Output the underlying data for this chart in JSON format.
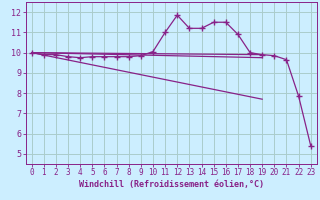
{
  "title": "",
  "xlabel": "Windchill (Refroidissement éolien,°C)",
  "background_color": "#cceeff",
  "grid_color": "#aacccc",
  "line_color": "#882288",
  "xlim_min": -0.5,
  "xlim_max": 23.5,
  "ylim_min": 4.5,
  "ylim_max": 12.5,
  "yticks": [
    5,
    6,
    7,
    8,
    9,
    10,
    11,
    12
  ],
  "xticks": [
    0,
    1,
    2,
    3,
    4,
    5,
    6,
    7,
    8,
    9,
    10,
    11,
    12,
    13,
    14,
    15,
    16,
    17,
    18,
    19,
    20,
    21,
    22,
    23
  ],
  "series_main": {
    "x": [
      0,
      1,
      2,
      3,
      4,
      5,
      6,
      7,
      8,
      9,
      10,
      11,
      12,
      13,
      14,
      15,
      16,
      17,
      18,
      19,
      20,
      21,
      22,
      23
    ],
    "y": [
      10.0,
      9.9,
      9.9,
      9.8,
      9.75,
      9.8,
      9.8,
      9.8,
      9.8,
      9.85,
      10.05,
      11.0,
      11.85,
      11.2,
      11.2,
      11.5,
      11.5,
      10.9,
      10.0,
      9.9,
      9.85,
      9.65,
      7.85,
      5.4
    ]
  },
  "series_flat1": {
    "x": [
      0,
      19
    ],
    "y": [
      10.0,
      9.9
    ]
  },
  "series_flat2": {
    "x": [
      0,
      19
    ],
    "y": [
      10.0,
      9.75
    ]
  },
  "series_diag": {
    "x": [
      0,
      19
    ],
    "y": [
      10.0,
      7.7
    ]
  }
}
